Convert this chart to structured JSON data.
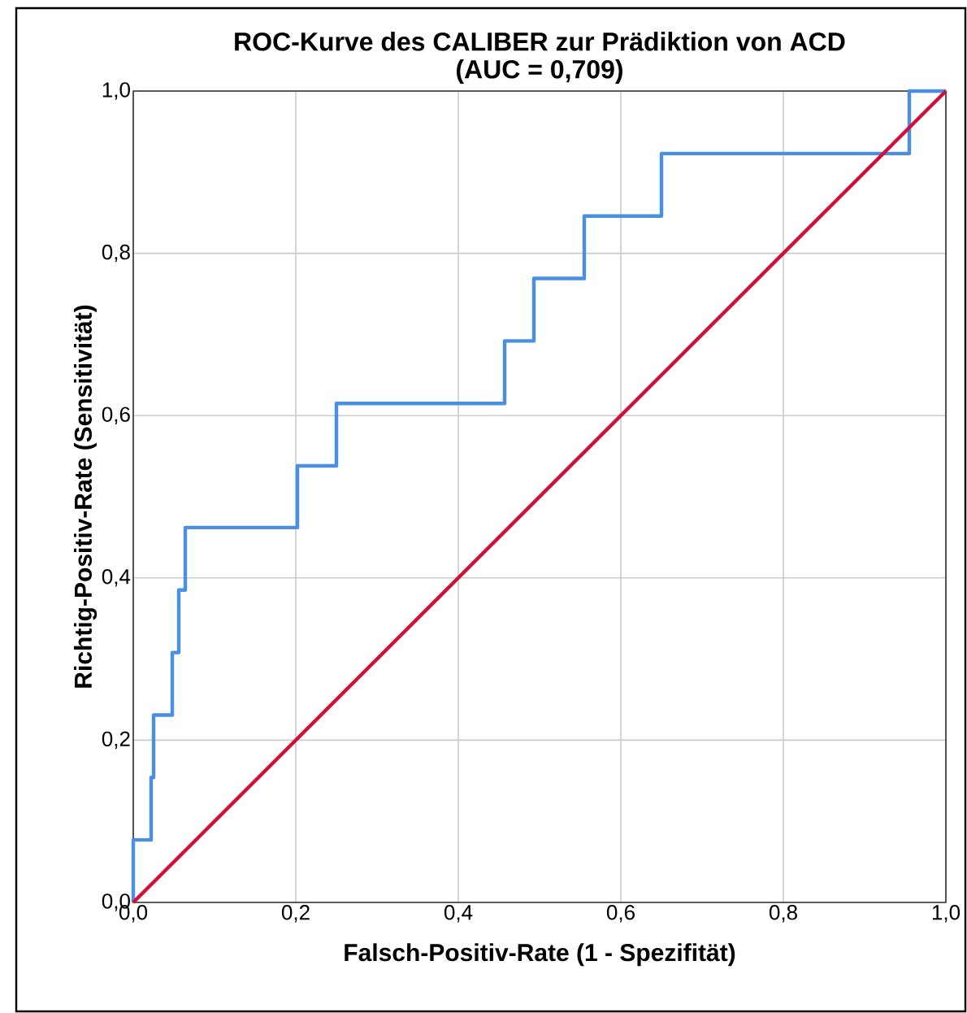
{
  "chart_data": {
    "type": "step",
    "title": "ROC-Kurve des CALIBER zur Prädiktion von ACD",
    "subtitle": "(AUC = 0,709)",
    "xlabel": "Falsch-Positiv-Rate (1 - Spezifität)",
    "ylabel": "Richtig-Positiv-Rate (Sensitivität)",
    "xlim": [
      0,
      1
    ],
    "ylim": [
      0,
      1
    ],
    "xticks": [
      {
        "value": 0,
        "label": "0,0"
      },
      {
        "value": 0.2,
        "label": "0,2"
      },
      {
        "value": 0.4,
        "label": "0,4"
      },
      {
        "value": 0.6,
        "label": "0,6"
      },
      {
        "value": 0.8,
        "label": "0,8"
      },
      {
        "value": 1,
        "label": "1,0"
      }
    ],
    "yticks": [
      {
        "value": 0,
        "label": "0,0"
      },
      {
        "value": 0.2,
        "label": "0,2"
      },
      {
        "value": 0.4,
        "label": "0,4"
      },
      {
        "value": 0.6,
        "label": "0,6"
      },
      {
        "value": 0.8,
        "label": "0,8"
      },
      {
        "value": 1,
        "label": "1,0"
      }
    ],
    "grid": true,
    "series": [
      {
        "color": "#4a90e2",
        "x": [
          0,
          0,
          0.022,
          0.025,
          0.048,
          0.056,
          0.064,
          0.202,
          0.25,
          0.457,
          0.493,
          0.555,
          0.65,
          0.955,
          1
        ],
        "values": [
          0,
          0.077,
          0.154,
          0.231,
          0.308,
          0.385,
          0.462,
          0.538,
          0.615,
          0.692,
          0.769,
          0.846,
          0.923,
          1,
          1
        ]
      },
      {
        "type": "line",
        "color": "#d0103a",
        "x": [
          0,
          1
        ],
        "values": [
          0,
          1
        ]
      }
    ]
  }
}
